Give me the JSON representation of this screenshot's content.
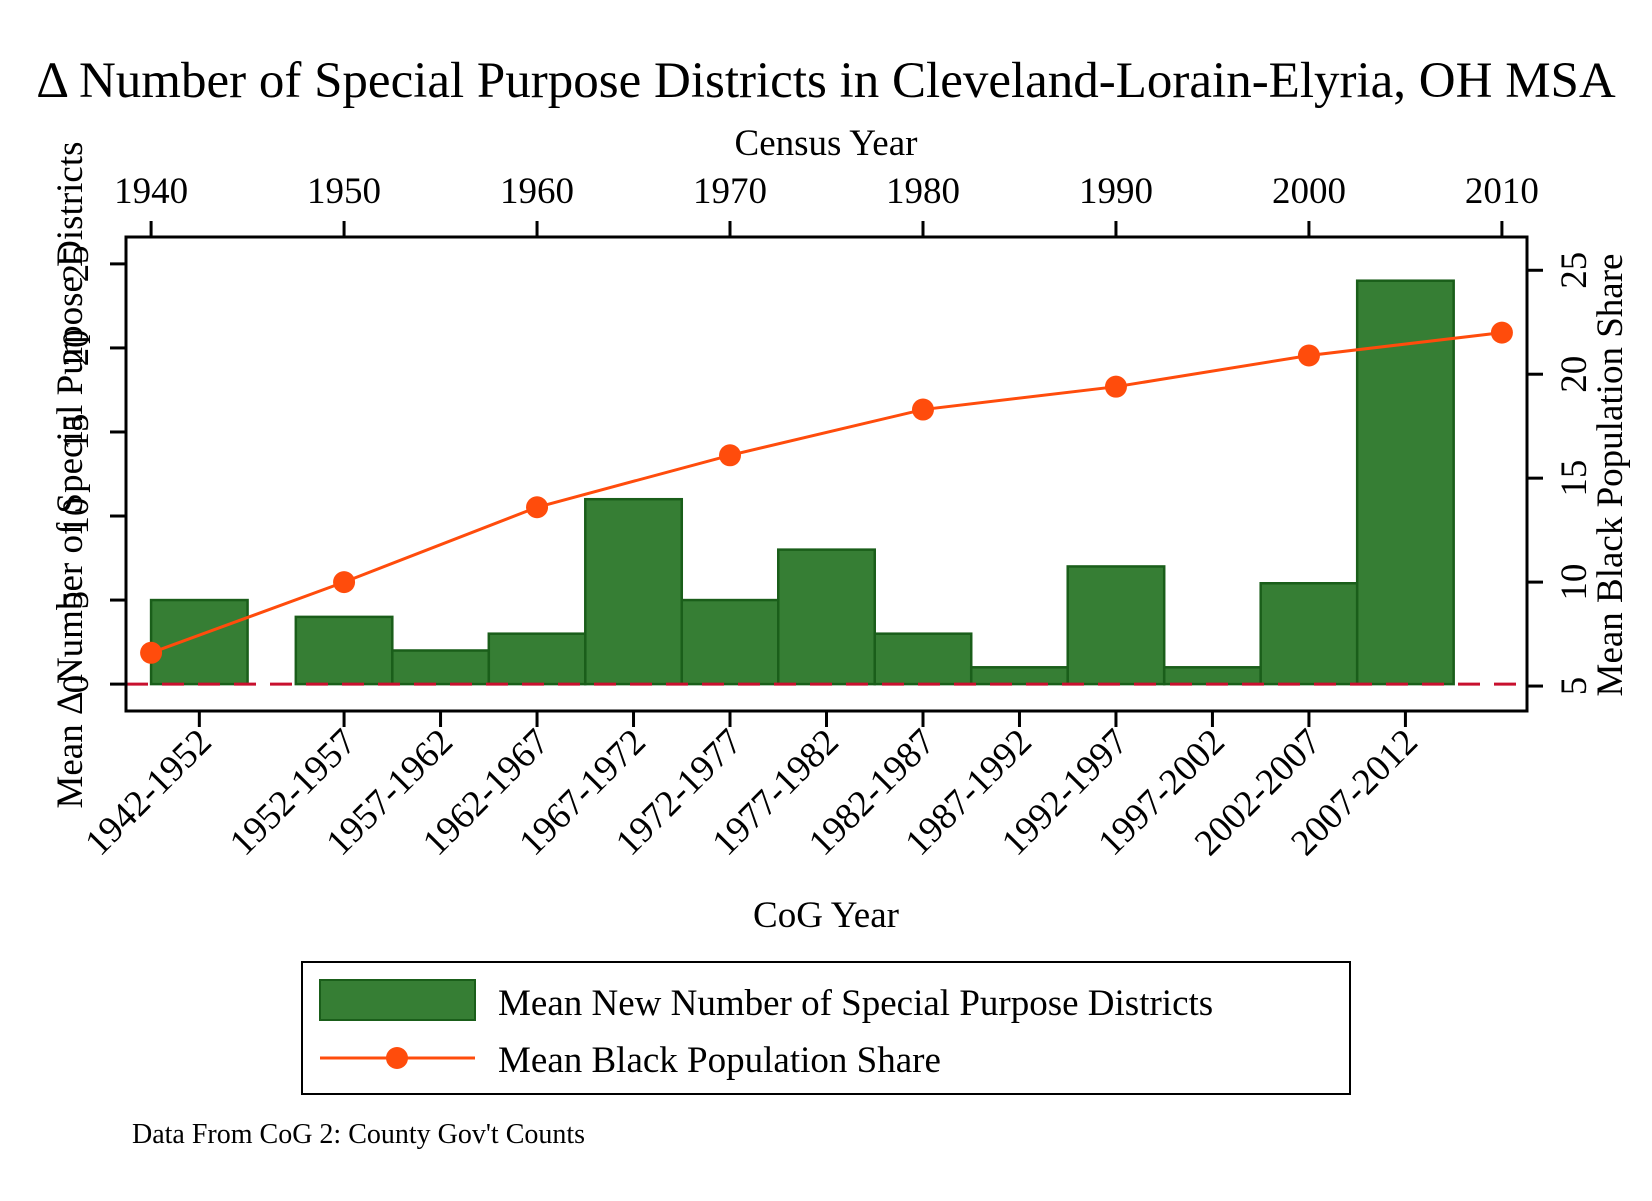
{
  "chart_data": {
    "type": "bar+line",
    "title": "Δ Number of Special Purpose Districts in Cleveland-Lorain-Elyria, OH MSA",
    "x_bottom_label": "CoG Year",
    "x_top_label": "Census Year",
    "y_left_label": "Mean Δ Number of Special Purpose Districts",
    "y_right_label": "Mean Black Population Share",
    "note": "Data From CoG 2: County Gov't Counts",
    "bars": {
      "name": "Mean New Number of Special Purpose Districts",
      "color": "#367e34",
      "edge_color": "#1a5e1a",
      "categories": [
        "1942-1952",
        "1952-1957",
        "1957-1962",
        "1962-1967",
        "1967-1972",
        "1972-1977",
        "1977-1982",
        "1982-1987",
        "1987-1992",
        "1992-1997",
        "1997-2002",
        "2002-2007",
        "2007-2012"
      ],
      "values": [
        5,
        4,
        2,
        3,
        11,
        5,
        8,
        3,
        1,
        7,
        1,
        6,
        24
      ],
      "periods": [
        [
          1940,
          1945
        ],
        [
          1947.5,
          1952.5
        ],
        [
          1952.5,
          1957.5
        ],
        [
          1957.5,
          1962.5
        ],
        [
          1962.5,
          1967.5
        ],
        [
          1967.5,
          1972.5
        ],
        [
          1972.5,
          1977.5
        ],
        [
          1977.5,
          1982.5
        ],
        [
          1982.5,
          1987.5
        ],
        [
          1987.5,
          1992.5
        ],
        [
          1992.5,
          1997.5
        ],
        [
          1997.5,
          2002.5
        ],
        [
          2002.5,
          2007.5
        ]
      ],
      "tick_positions": [
        1942.5,
        1950,
        1955,
        1960,
        1965,
        1970,
        1975,
        1980,
        1985,
        1990,
        1995,
        2000,
        2005
      ]
    },
    "line": {
      "name": "Mean Black Population Share",
      "color": "#ff4c0c",
      "x": [
        1940,
        1950,
        1960,
        1970,
        1980,
        1990,
        2000,
        2010
      ],
      "y": [
        6.6,
        10.0,
        13.6,
        16.1,
        18.3,
        19.4,
        20.9,
        22.0
      ]
    },
    "x_top_ticks": [
      1940,
      1950,
      1960,
      1970,
      1980,
      1990,
      2000,
      2010
    ],
    "y_left_ticks": [
      0,
      5,
      10,
      15,
      20,
      25
    ],
    "y_left_lim": [
      -1.6,
      26.6
    ],
    "y_right_ticks": [
      5,
      10,
      15,
      20,
      25
    ],
    "y_right_lim": [
      3.8,
      26.6
    ],
    "x_lim": [
      1938.7,
      2011.3
    ],
    "reference_line": {
      "y": 0,
      "color": "#c8102e",
      "style": "dashed"
    },
    "legend_placement": "bottom"
  }
}
